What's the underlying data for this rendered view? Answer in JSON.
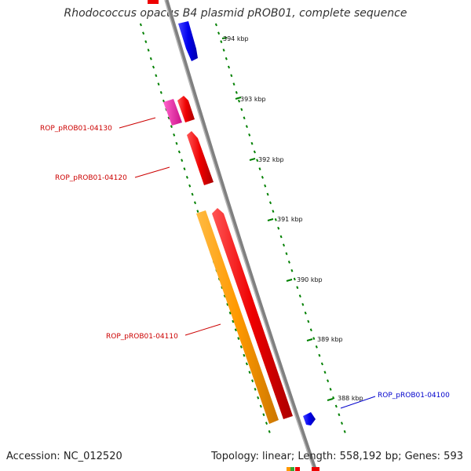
{
  "title": "Rhodococcus opacus B4 plasmid pROB01, complete sequence",
  "footer": {
    "accession": "Accession: NC_012520",
    "summary": "Topology: linear; Length: 558,192 bp; Genes: 593"
  },
  "ticks": [
    {
      "kbp": 394,
      "label": "394 kbp"
    },
    {
      "kbp": 393,
      "label": "393 kbp"
    },
    {
      "kbp": 392,
      "label": "392 kbp"
    },
    {
      "kbp": 391,
      "label": "391 kbp"
    },
    {
      "kbp": 390,
      "label": "390 kbp"
    },
    {
      "kbp": 389,
      "label": "389 kbp"
    },
    {
      "kbp": 388,
      "label": "388 kbp"
    }
  ],
  "gene_labels": [
    {
      "name": "ROP_pROB01-04130",
      "color": "#cc0000"
    },
    {
      "name": "ROP_pROB01-04120",
      "color": "#cc0000"
    },
    {
      "name": "ROP_pROB01-04110",
      "color": "#cc0000"
    },
    {
      "name": "ROP_pROB01-04100",
      "color": "#0000cc"
    }
  ],
  "colors": {
    "backbone": "#808080",
    "tick_green": "#008000",
    "forward_red": "#ee0000",
    "reverse_blue": "#0000ee",
    "orange": "#ff9900",
    "magenta": "#ee22aa"
  }
}
